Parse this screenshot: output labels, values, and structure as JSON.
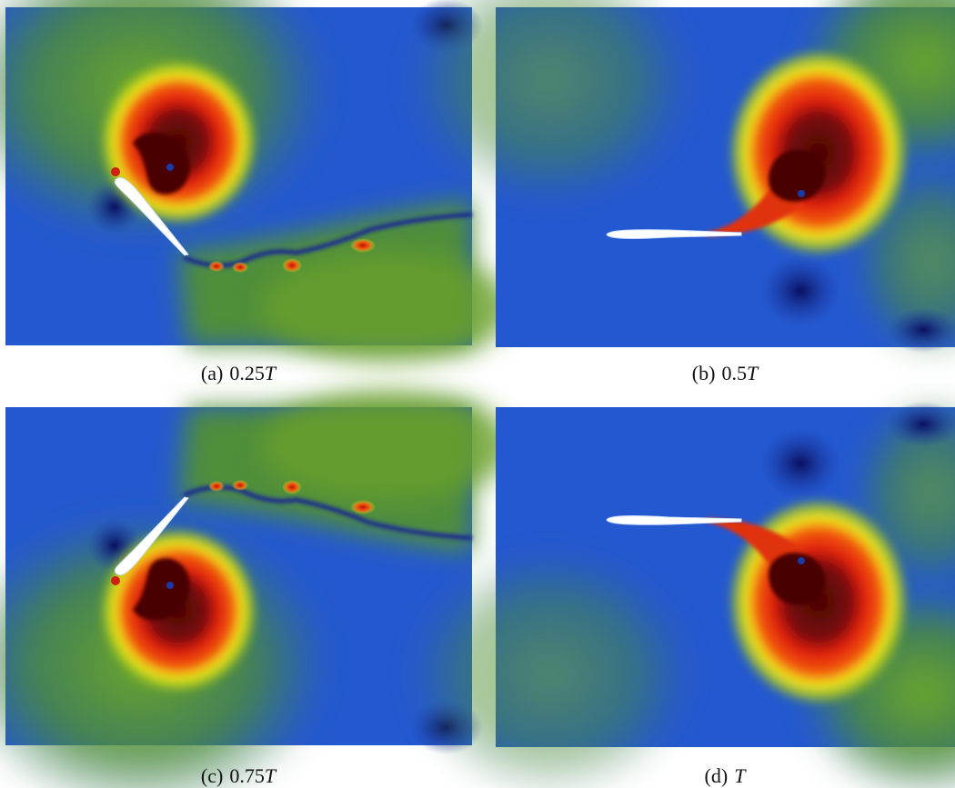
{
  "panels": [
    {
      "label": "(a)",
      "time": "0.25",
      "symbol": "T"
    },
    {
      "label": "(b)",
      "time": "0.5",
      "symbol": "T"
    },
    {
      "label": "(c)",
      "time": "0.75",
      "symbol": "T"
    },
    {
      "label": "(d)",
      "symbol": "T"
    }
  ]
}
